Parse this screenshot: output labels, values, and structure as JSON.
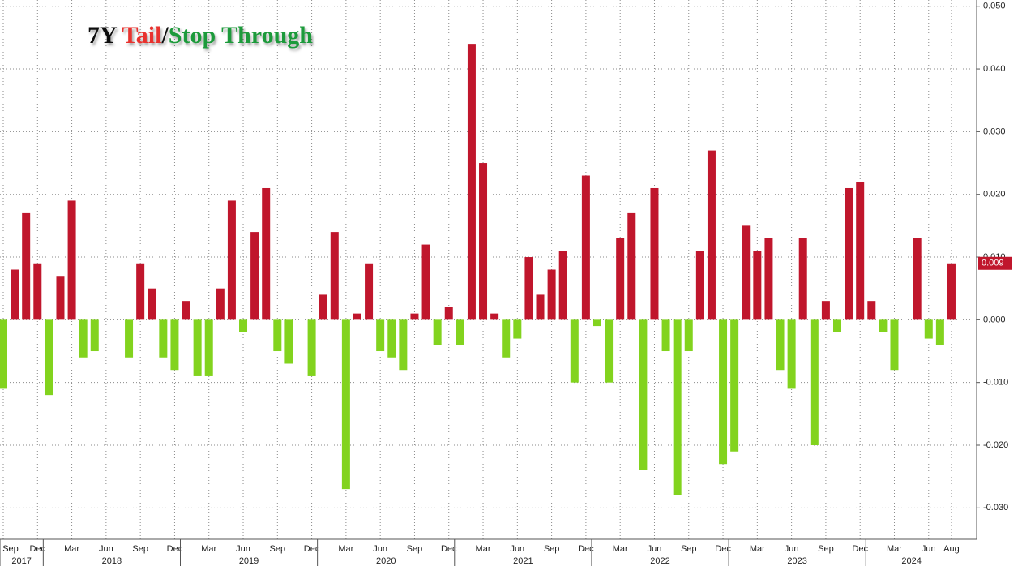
{
  "chart_data": {
    "type": "bar",
    "title_segments": [
      {
        "text": "7Y ",
        "color": "#111111"
      },
      {
        "text": "Tail",
        "color": "#e8332e"
      },
      {
        "text": "/",
        "color": "#111111"
      },
      {
        "text": "Stop Through",
        "color": "#1f9a3a"
      }
    ],
    "categories": [
      "Sep",
      null,
      null,
      "Dec",
      null,
      null,
      "Mar",
      null,
      null,
      "Jun",
      null,
      null,
      "Sep",
      null,
      null,
      "Dec",
      null,
      null,
      "Mar",
      null,
      null,
      "Jun",
      null,
      null,
      "Sep",
      null,
      null,
      "Dec",
      null,
      null,
      "Mar",
      null,
      null,
      "Jun",
      null,
      null,
      "Sep",
      null,
      null,
      "Dec",
      null,
      null,
      "Mar",
      null,
      null,
      "Jun",
      null,
      null,
      "Sep",
      null,
      null,
      "Dec",
      null,
      null,
      "Mar",
      null,
      null,
      "Jun",
      null,
      null,
      "Sep",
      null,
      null,
      "Dec",
      null,
      null,
      "Mar",
      null,
      null,
      "Jun",
      null,
      null,
      "Sep",
      null,
      null,
      "Dec",
      null,
      null,
      "Mar",
      null,
      null,
      "Jun",
      null,
      "Aug"
    ],
    "year_groups": [
      {
        "label": "2017",
        "count": 4
      },
      {
        "label": "2018",
        "count": 12
      },
      {
        "label": "2019",
        "count": 12
      },
      {
        "label": "2020",
        "count": 12
      },
      {
        "label": "2021",
        "count": 12
      },
      {
        "label": "2022",
        "count": 12
      },
      {
        "label": "2023",
        "count": 12
      },
      {
        "label": "2024",
        "count": 8
      }
    ],
    "values": [
      -0.011,
      0.008,
      0.017,
      0.009,
      -0.012,
      0.007,
      0.019,
      -0.006,
      -0.005,
      0,
      0,
      -0.006,
      0.009,
      0.005,
      -0.006,
      -0.008,
      0.003,
      -0.009,
      -0.009,
      0.005,
      0.019,
      -0.002,
      0.014,
      0.021,
      -0.005,
      -0.007,
      0,
      -0.009,
      0.004,
      0.014,
      -0.027,
      0.001,
      0.009,
      -0.005,
      -0.006,
      -0.008,
      0.001,
      0.012,
      -0.004,
      0.002,
      -0.004,
      0.044,
      0.025,
      0.001,
      -0.006,
      -0.003,
      0.01,
      0.004,
      0.008,
      0.011,
      -0.01,
      0.023,
      -0.001,
      -0.01,
      0.013,
      0.017,
      -0.024,
      0.021,
      -0.005,
      -0.028,
      -0.005,
      0.011,
      0.027,
      -0.023,
      -0.021,
      0.015,
      0.011,
      0.013,
      -0.008,
      -0.011,
      0.013,
      -0.02,
      0.003,
      -0.002,
      0.021,
      0.022,
      0.003,
      -0.002,
      -0.008,
      0,
      0.013,
      -0.003,
      -0.004,
      0.009
    ],
    "value_labels": [
      null,
      null,
      null,
      null,
      null,
      null,
      null,
      null,
      null,
      null,
      null,
      null,
      null,
      null,
      null,
      null,
      null,
      null,
      null,
      null,
      null,
      null,
      null,
      null,
      null,
      null,
      null,
      null,
      null,
      null,
      null,
      null,
      null,
      null,
      null,
      null,
      null,
      null,
      null,
      null,
      null,
      null,
      null,
      null,
      null,
      null,
      null,
      null,
      null,
      null,
      null,
      null,
      null,
      null,
      null,
      null,
      null,
      null,
      null,
      null,
      null,
      null,
      null,
      null,
      null,
      null,
      null,
      null,
      null,
      null,
      null,
      null,
      null,
      null,
      null,
      null,
      null,
      null,
      null,
      null,
      null,
      null,
      null,
      "0.009"
    ],
    "positive_color": "#c0162c",
    "negative_color": "#82d31e",
    "ylim": [
      -0.035,
      0.051
    ],
    "yticks": [
      {
        "value": -0.03,
        "label": "-0.030"
      },
      {
        "value": -0.02,
        "label": "-0.020"
      },
      {
        "value": -0.01,
        "label": "-0.010"
      },
      {
        "value": 0,
        "label": "0.000"
      },
      {
        "value": 0.01,
        "label": "0.010"
      },
      {
        "value": 0.02,
        "label": "0.020"
      },
      {
        "value": 0.03,
        "label": "0.030"
      },
      {
        "value": 0.04,
        "label": "0.040"
      },
      {
        "value": 0.05,
        "label": "0.050"
      }
    ],
    "grid": true,
    "y_axis_side": "right"
  }
}
